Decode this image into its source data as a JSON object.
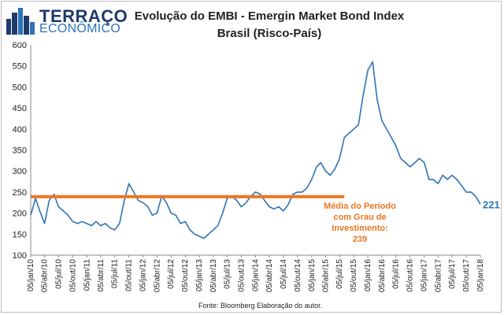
{
  "logo": {
    "line1": "TERRAÇO",
    "line2": "ECONÔMICO",
    "icon": "city-skyline-icon"
  },
  "colors": {
    "series": "#2e73b8",
    "mean_line": "#e87722",
    "logo_dark": "#1f3a6b",
    "logo_light": "#2e73b8"
  },
  "source_note": "Fonte: Bloomberg  Elaboração do autor.",
  "chart_data": {
    "type": "line",
    "title": "Evolução do EMBI - Emergin Market Bond Index",
    "subtitle": "Brasil (Risco-País)",
    "xlabel": "",
    "ylabel": "",
    "ylim": [
      100,
      600
    ],
    "yticks": [
      100,
      150,
      200,
      250,
      300,
      350,
      400,
      450,
      500,
      550,
      600
    ],
    "grid": false,
    "legend": "none",
    "xlim": [
      "2010-01-05",
      "2018-01-05"
    ],
    "x_tick_labels": [
      "05/jan/10",
      "05/abr/10",
      "05/jul/10",
      "05/out/10",
      "05/jan/11",
      "05/abr/11",
      "05/jul/11",
      "05/out/11",
      "05/jan/12",
      "05/abr/12",
      "05/jul/12",
      "05/out/12",
      "05/jan/13",
      "05/abr/13",
      "05/jul/13",
      "05/out/13",
      "05/jan/14",
      "05/abr/14",
      "05/jul/14",
      "05/out/14",
      "05/jan/15",
      "05/abr/15",
      "05/jul/15",
      "05/out/15",
      "05/jan/16",
      "05/abr/16",
      "05/jul/16",
      "05/out/16",
      "05/jan/17",
      "05/abr/17",
      "05/jul/17",
      "05/out/17",
      "05/jan/18"
    ],
    "series": [
      {
        "name": "",
        "x": [
          "2010-01-05",
          "2010-02-05",
          "2010-03-05",
          "2010-04-05",
          "2010-05-05",
          "2010-06-05",
          "2010-07-05",
          "2010-08-05",
          "2010-09-05",
          "2010-10-05",
          "2010-11-05",
          "2010-12-05",
          "2011-01-05",
          "2011-02-05",
          "2011-03-05",
          "2011-04-05",
          "2011-05-05",
          "2011-06-05",
          "2011-07-05",
          "2011-08-05",
          "2011-09-05",
          "2011-10-05",
          "2011-11-05",
          "2011-12-05",
          "2012-01-05",
          "2012-02-05",
          "2012-03-05",
          "2012-04-05",
          "2012-05-05",
          "2012-06-05",
          "2012-07-05",
          "2012-08-05",
          "2012-09-05",
          "2012-10-05",
          "2012-11-05",
          "2012-12-05",
          "2013-01-05",
          "2013-02-05",
          "2013-03-05",
          "2013-04-05",
          "2013-05-05",
          "2013-06-05",
          "2013-07-05",
          "2013-08-05",
          "2013-09-05",
          "2013-10-05",
          "2013-11-05",
          "2013-12-05",
          "2014-01-05",
          "2014-02-05",
          "2014-03-05",
          "2014-04-05",
          "2014-05-05",
          "2014-06-05",
          "2014-07-05",
          "2014-08-05",
          "2014-09-05",
          "2014-10-05",
          "2014-11-05",
          "2014-12-05",
          "2015-01-05",
          "2015-02-05",
          "2015-03-05",
          "2015-04-05",
          "2015-05-05",
          "2015-06-05",
          "2015-07-05",
          "2015-08-05",
          "2015-09-05",
          "2015-10-05",
          "2015-11-05",
          "2015-12-05",
          "2016-01-05",
          "2016-02-05",
          "2016-03-05",
          "2016-04-05",
          "2016-05-05",
          "2016-06-05",
          "2016-07-05",
          "2016-08-05",
          "2016-09-05",
          "2016-10-05",
          "2016-11-05",
          "2016-12-05",
          "2017-01-05",
          "2017-02-05",
          "2017-03-05",
          "2017-04-05",
          "2017-05-05",
          "2017-06-05",
          "2017-07-05",
          "2017-08-05",
          "2017-09-05",
          "2017-10-05",
          "2017-11-05",
          "2017-12-05",
          "2018-01-05"
        ],
        "values": [
          195,
          235,
          205,
          175,
          230,
          245,
          215,
          205,
          195,
          180,
          175,
          180,
          175,
          170,
          180,
          170,
          175,
          165,
          160,
          175,
          230,
          270,
          250,
          230,
          225,
          215,
          195,
          200,
          240,
          225,
          200,
          195,
          175,
          180,
          160,
          150,
          145,
          140,
          150,
          160,
          170,
          200,
          235,
          240,
          230,
          215,
          225,
          240,
          250,
          245,
          230,
          215,
          210,
          215,
          205,
          220,
          245,
          250,
          250,
          260,
          280,
          310,
          320,
          300,
          290,
          305,
          330,
          380,
          390,
          400,
          410,
          480,
          540,
          560,
          470,
          420,
          400,
          380,
          360,
          330,
          320,
          310,
          320,
          330,
          320,
          280,
          280,
          270,
          290,
          280,
          290,
          280,
          265,
          250,
          250,
          240,
          221
        ]
      }
    ],
    "reference_lines": [
      {
        "value": 239,
        "from": "2010-01-05",
        "to": "2015-08-05"
      }
    ],
    "annotations": {
      "mean_label_lines": [
        "Média do Período",
        "com Grau de",
        "Investimento:",
        "239"
      ],
      "last_value_label": "221"
    }
  }
}
